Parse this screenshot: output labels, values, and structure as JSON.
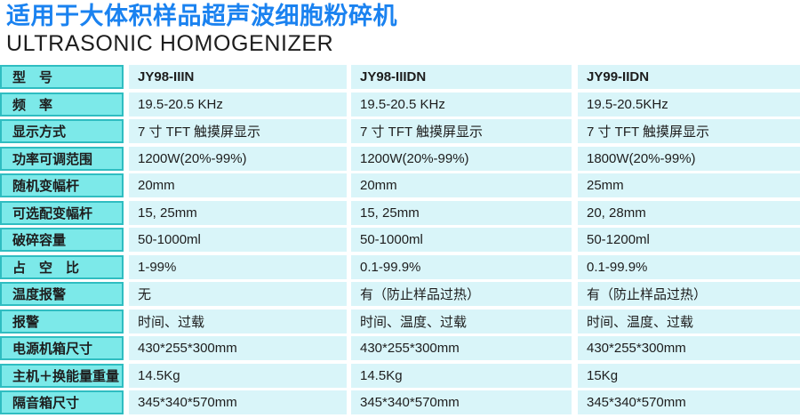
{
  "header": {
    "title_cn": "适用于大体积样品超声波细胞粉碎机",
    "title_en": "ULTRASONIC HOMOGENIZER"
  },
  "colors": {
    "title_blue": "#1a82f0",
    "label_bg": "#7ce9e9",
    "label_border": "#2fbdc1",
    "data_bg": "#d9f5f9",
    "text": "#1d1d1d"
  },
  "table": {
    "models": [
      "JY98-IIIN",
      "JY98-IIIDN",
      "JY99-IIDN"
    ],
    "rows": [
      {
        "label": "型　号",
        "values": [
          "JY98-IIIN",
          "JY98-IIIDN",
          "JY99-IIDN"
        ]
      },
      {
        "label": "频　率",
        "values": [
          "19.5-20.5 KHz",
          "19.5-20.5 KHz",
          "19.5-20.5KHz"
        ]
      },
      {
        "label": "显示方式",
        "values": [
          "7 寸 TFT 触摸屏显示",
          "7 寸 TFT 触摸屏显示",
          "7 寸 TFT 触摸屏显示"
        ]
      },
      {
        "label": "功率可调范围",
        "values": [
          "1200W(20%-99%)",
          "1200W(20%-99%)",
          "1800W(20%-99%)"
        ]
      },
      {
        "label": "随机变幅杆",
        "values": [
          "20mm",
          "20mm",
          "25mm"
        ]
      },
      {
        "label": "可选配变幅杆",
        "values": [
          "15, 25mm",
          "15, 25mm",
          "20, 28mm"
        ]
      },
      {
        "label": "破碎容量",
        "values": [
          "50-1000ml",
          "50-1000ml",
          "50-1200ml"
        ]
      },
      {
        "label": "占　空　比",
        "values": [
          "1-99%",
          "0.1-99.9%",
          "0.1-99.9%"
        ]
      },
      {
        "label": "温度报警",
        "values": [
          "无",
          "有（防止样品过热）",
          "有（防止样品过热）"
        ]
      },
      {
        "label": "报警",
        "values": [
          "时间、过载",
          "时间、温度、过载",
          "时间、温度、过载"
        ]
      },
      {
        "label": "电源机箱尺寸",
        "values": [
          "430*255*300mm",
          "430*255*300mm",
          "430*255*300mm"
        ]
      },
      {
        "label": "主机＋换能量重量",
        "values": [
          "14.5Kg",
          "14.5Kg",
          "15Kg"
        ]
      },
      {
        "label": "隔音箱尺寸",
        "values": [
          "345*340*570mm",
          "345*340*570mm",
          "345*340*570mm"
        ]
      }
    ]
  }
}
